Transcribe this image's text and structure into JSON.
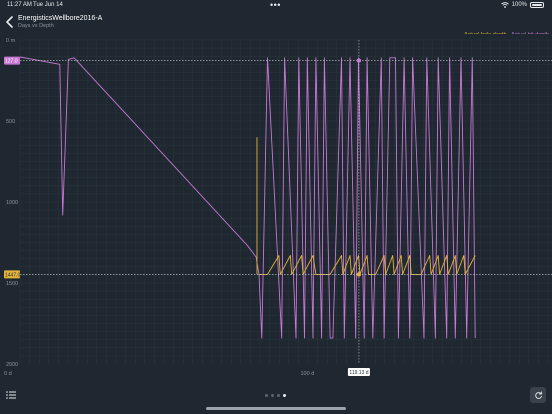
{
  "status": {
    "time": "11:27 AM",
    "date": "Tue Jun 14",
    "battery": "100%",
    "dots": "•••"
  },
  "header": {
    "title": "EnergisticsWellbore2016-A",
    "subtitle": "Days vs Depth"
  },
  "legend": {
    "hole_label": "Actual hole depth",
    "bit_label": "Actual bit depth"
  },
  "colors": {
    "hole": "#e2b43c",
    "bit": "#c678d2",
    "grid": "#2b353e",
    "background": "#1f2830"
  },
  "icons": {
    "back": "chevron-left-icon",
    "list": "list-icon",
    "reset": "reset-icon",
    "wifi": "wifi-icon",
    "battery": "battery-icon"
  },
  "pager": {
    "count": 4,
    "active": 3
  },
  "chart_data": {
    "type": "line",
    "xlabel": "",
    "ylabel": "",
    "xlim": [
      0,
      187
    ],
    "ylim": [
      2000,
      0
    ],
    "y_reversed": true,
    "grid": true,
    "x_ticks": [
      0,
      100
    ],
    "x_tick_labels": [
      "0 d",
      "100 d"
    ],
    "y_ticks": [
      0,
      500,
      1000,
      1500,
      2000
    ],
    "y_tick_labels": [
      "0 m",
      "500",
      "1000",
      "1500",
      "2000"
    ],
    "x_cursor_label": "119.13 d",
    "x_cursor_value": 119.13,
    "crosshair_y_values": [
      127.0,
      1447.0
    ],
    "crosshair_y_labels": [
      "127.0",
      "1447.0"
    ],
    "series": [
      {
        "name": "Actual bit depth",
        "points": [
          [
            0,
            105
          ],
          [
            14,
            150
          ],
          [
            15,
            1080
          ],
          [
            17,
            120
          ],
          [
            19,
            110
          ],
          [
            80,
            1270
          ],
          [
            83,
            1340
          ],
          [
            84,
            1447
          ],
          [
            85,
            1840
          ],
          [
            87,
            110
          ],
          [
            92,
            1840
          ],
          [
            93,
            110
          ],
          [
            97,
            1840
          ],
          [
            98,
            110
          ],
          [
            100,
            1840
          ],
          [
            101,
            110
          ],
          [
            103,
            1840
          ],
          [
            104,
            110
          ],
          [
            106,
            1840
          ],
          [
            107,
            110
          ],
          [
            109,
            1840
          ],
          [
            110,
            1840
          ],
          [
            113,
            110
          ],
          [
            114,
            1840
          ],
          [
            116,
            110
          ],
          [
            118,
            1840
          ],
          [
            119,
            110
          ],
          [
            121,
            1840
          ],
          [
            122,
            110
          ],
          [
            124,
            1840
          ],
          [
            127,
            110
          ],
          [
            128,
            1840
          ],
          [
            130,
            110
          ],
          [
            132,
            110
          ],
          [
            133,
            1840
          ],
          [
            135,
            110
          ],
          [
            137,
            1840
          ],
          [
            138,
            110
          ],
          [
            142,
            1840
          ],
          [
            143,
            110
          ],
          [
            146,
            1840
          ],
          [
            147,
            110
          ],
          [
            150,
            1840
          ],
          [
            151,
            110
          ],
          [
            153,
            1840
          ],
          [
            155,
            110
          ],
          [
            157,
            1840
          ],
          [
            159,
            110
          ],
          [
            160,
            1840
          ]
        ]
      },
      {
        "name": "Actual hole depth",
        "points": [
          [
            84,
            1447
          ],
          [
            87,
            1447
          ],
          [
            91,
            1330
          ],
          [
            91.5,
            1447
          ],
          [
            95,
            1330
          ],
          [
            95.5,
            1447
          ],
          [
            99,
            1330
          ],
          [
            99.5,
            1447
          ],
          [
            103,
            1330
          ],
          [
            104,
            1447
          ],
          [
            109,
            1447
          ],
          [
            113,
            1330
          ],
          [
            113.5,
            1447
          ],
          [
            116,
            1330
          ],
          [
            116.5,
            1447
          ],
          [
            119,
            1330
          ],
          [
            119.5,
            1447
          ],
          [
            122,
            1330
          ],
          [
            122.5,
            1447
          ],
          [
            125,
            1447
          ],
          [
            128,
            1330
          ],
          [
            128.5,
            1447
          ],
          [
            131,
            1330
          ],
          [
            131.5,
            1447
          ],
          [
            134,
            1330
          ],
          [
            134.5,
            1447
          ],
          [
            137,
            1330
          ],
          [
            137.5,
            1447
          ],
          [
            141,
            1447
          ],
          [
            144,
            1330
          ],
          [
            144.5,
            1447
          ],
          [
            147,
            1330
          ],
          [
            147.5,
            1447
          ],
          [
            150,
            1330
          ],
          [
            150.5,
            1447
          ],
          [
            153,
            1330
          ],
          [
            153.5,
            1447
          ],
          [
            156,
            1330
          ],
          [
            156.5,
            1447
          ],
          [
            160,
            1330
          ]
        ]
      }
    ]
  }
}
